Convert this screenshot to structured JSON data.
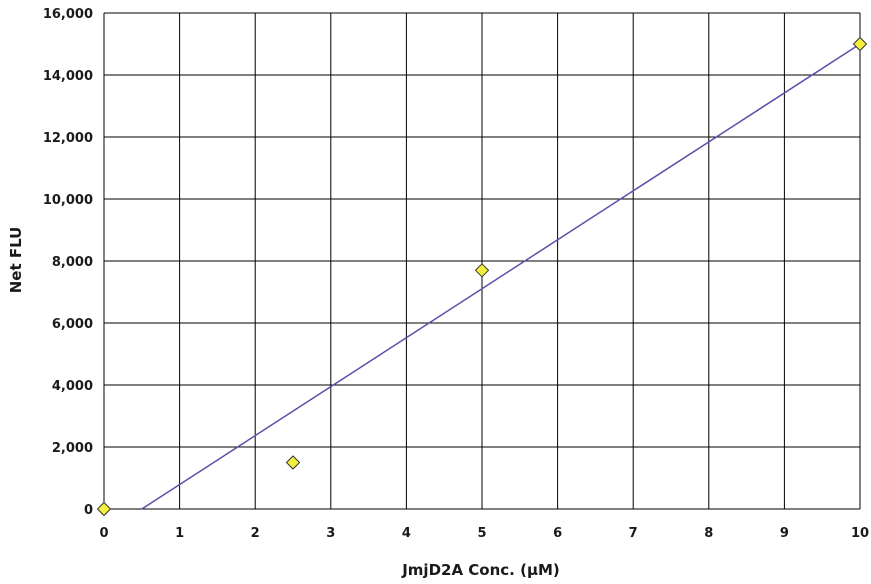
{
  "chart_data": {
    "type": "scatter",
    "title": "",
    "xlabel": "JmjD2A Conc. (µM)",
    "ylabel": "Net FLU",
    "xlim": [
      0,
      10
    ],
    "ylim": [
      0,
      16000
    ],
    "x_ticks": [
      0,
      1,
      2,
      3,
      4,
      5,
      6,
      7,
      8,
      9,
      10
    ],
    "x_tick_labels": [
      "0",
      "1",
      "2",
      "3",
      "4",
      "5",
      "6",
      "7",
      "8",
      "9",
      "10"
    ],
    "y_ticks": [
      0,
      2000,
      4000,
      6000,
      8000,
      10000,
      12000,
      14000,
      16000
    ],
    "y_tick_labels": [
      "0",
      "2,000",
      "4,000",
      "6,000",
      "8,000",
      "10,000",
      "12,000",
      "14,000",
      "16,000"
    ],
    "grid": true,
    "legend": "none",
    "series": [
      {
        "type": "scatter",
        "marker": "diamond",
        "color": "#f5f03c",
        "edge_color": "#333333",
        "points": [
          {
            "x": 0,
            "y": 0
          },
          {
            "x": 2.5,
            "y": 1500
          },
          {
            "x": 5,
            "y": 7700
          },
          {
            "x": 10,
            "y": 15000
          }
        ]
      },
      {
        "type": "line",
        "color": "#5b4fa8",
        "points": [
          {
            "x": 0.5,
            "y": 0
          },
          {
            "x": 10,
            "y": 15000
          }
        ]
      }
    ],
    "colors": {
      "grid": "#000000",
      "fit_line": "#5b4fa8",
      "marker_fill": "#f5f03c",
      "marker_edge": "#333333",
      "text": "#1a1a1a"
    }
  }
}
